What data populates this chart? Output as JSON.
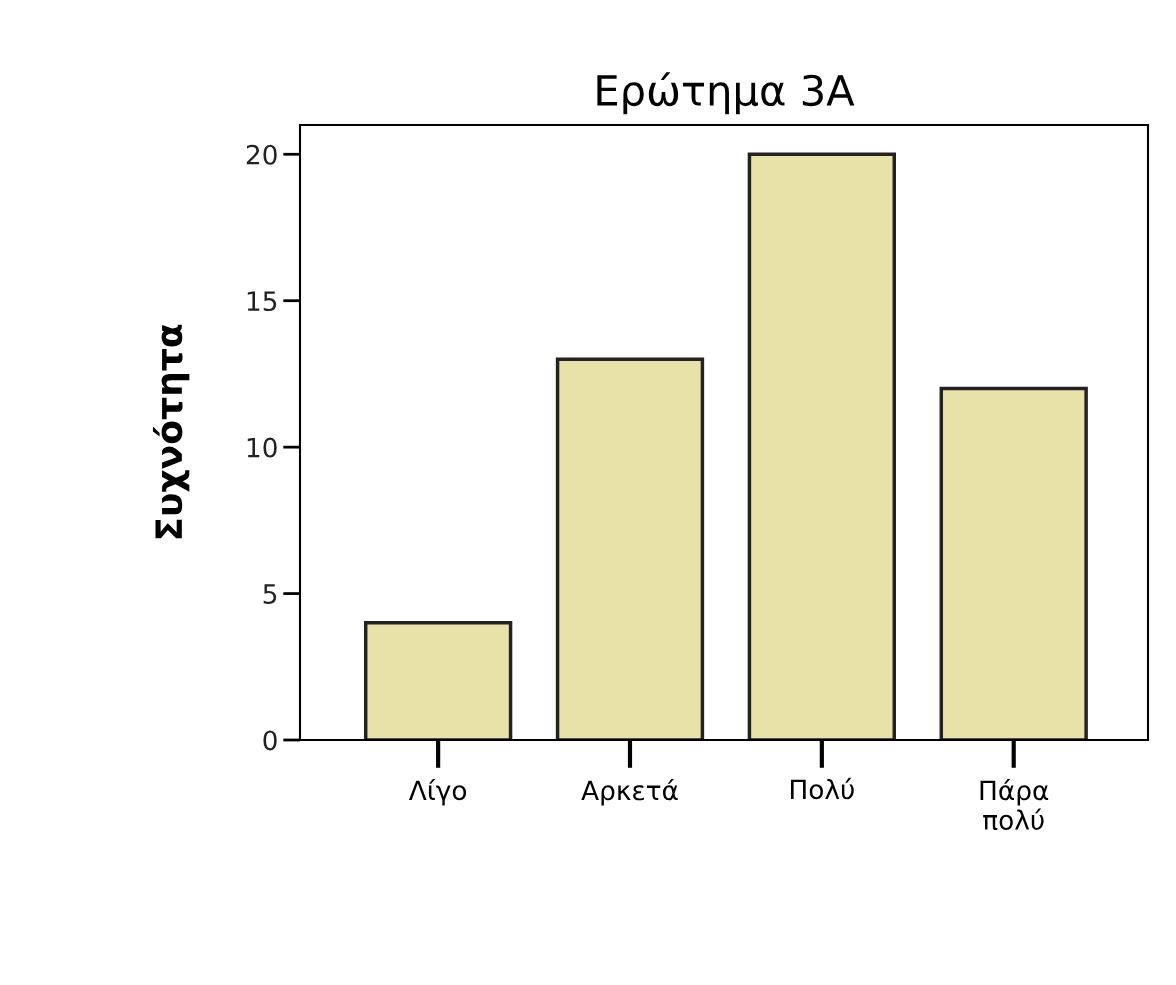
{
  "chart_data": {
    "type": "bar",
    "title": "Ερώτημα 3A",
    "ylabel": "Συχνότητα",
    "categories": [
      "Λίγο",
      "Αρκετά",
      "Πολύ",
      "Πάρα\nπολύ"
    ],
    "values": [
      4,
      13,
      20,
      12
    ],
    "color": "#e8e2a8",
    "ylim": [
      0,
      21
    ],
    "yticks": [
      0,
      5,
      10,
      15,
      20
    ],
    "grid": false,
    "legend": false
  }
}
